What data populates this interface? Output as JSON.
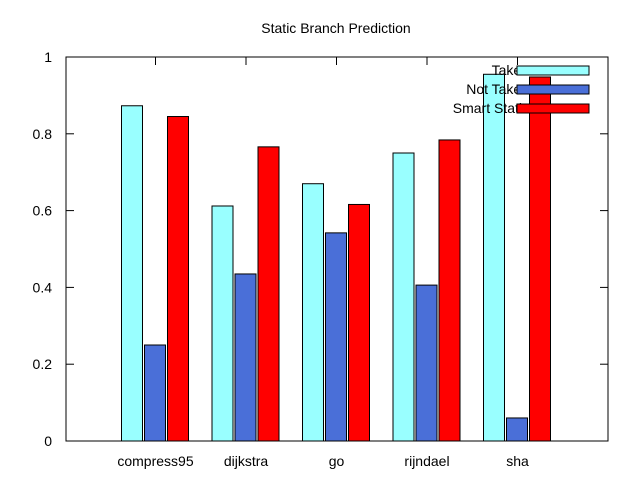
{
  "chart_data": {
    "type": "bar",
    "title": "Static Branch Prediction",
    "xlabel": "",
    "ylabel": "",
    "ylim": [
      0,
      1
    ],
    "yticks": [
      {
        "value": 0,
        "label": "0"
      },
      {
        "value": 0.2,
        "label": "0.2"
      },
      {
        "value": 0.4,
        "label": "0.4"
      },
      {
        "value": 0.6,
        "label": "0.6"
      },
      {
        "value": 0.8,
        "label": "0.8"
      },
      {
        "value": 1,
        "label": "1"
      }
    ],
    "categories": [
      "compress95",
      "dijkstra",
      "go",
      "rijndael",
      "sha"
    ],
    "series": [
      {
        "name": "Taken",
        "color": "#99ffff",
        "values": [
          0.873,
          0.612,
          0.67,
          0.75,
          0.955
        ]
      },
      {
        "name": "Not Taken",
        "color": "#4a6fd8",
        "values": [
          0.25,
          0.435,
          0.542,
          0.406,
          0.06
        ]
      },
      {
        "name": "Smart Static",
        "color": "#ff0000",
        "values": [
          0.845,
          0.766,
          0.616,
          0.784,
          0.948
        ]
      }
    ],
    "legend": "top-right",
    "grid": false
  }
}
